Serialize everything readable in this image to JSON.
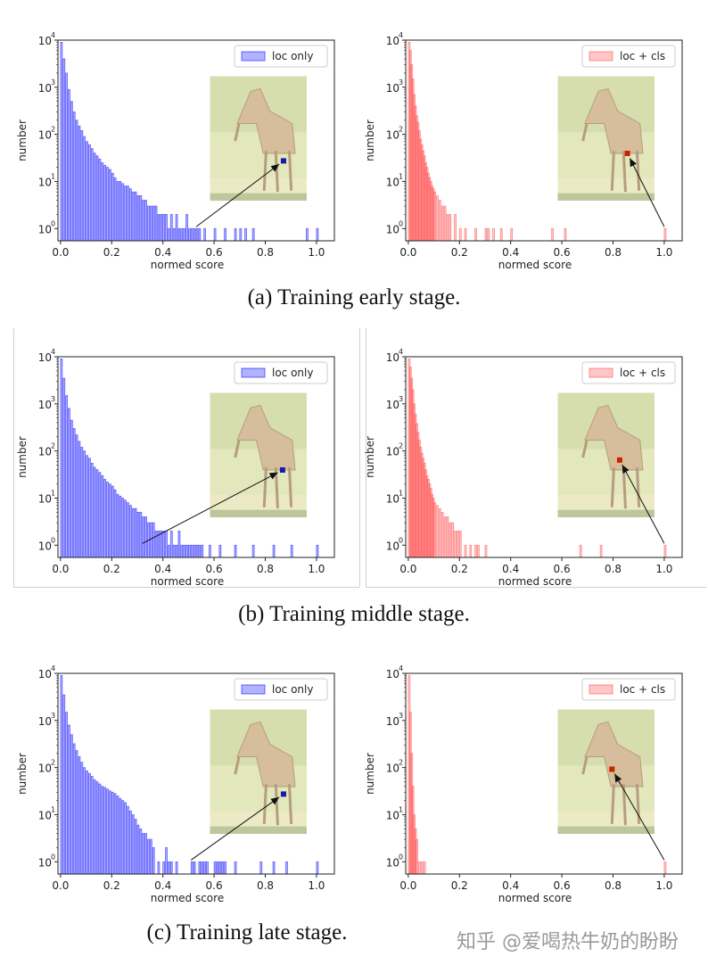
{
  "rows": [
    {
      "caption": "(a) Training early stage.",
      "charts": [
        {
          "series_name": "loc only",
          "color": "#0000ff",
          "xlabel": "normed score",
          "ylabel": "number",
          "marker_color": "#1a1aa8",
          "arrow_from": [
            0.53,
            1.0
          ],
          "marker_pos": [
            0.76,
            0.68
          ],
          "bins": [
            0.0,
            0.01,
            0.02,
            0.03,
            0.04,
            0.05,
            0.06,
            0.07,
            0.08,
            0.09,
            0.1,
            0.11,
            0.12,
            0.13,
            0.14,
            0.15,
            0.16,
            0.17,
            0.18,
            0.19,
            0.2,
            0.21,
            0.22,
            0.23,
            0.24,
            0.25,
            0.26,
            0.27,
            0.28,
            0.29,
            0.3,
            0.31,
            0.32,
            0.33,
            0.34,
            0.35,
            0.36,
            0.37,
            0.38,
            0.39,
            0.4,
            0.41,
            0.42,
            0.43,
            0.44,
            0.45,
            0.46,
            0.47,
            0.48,
            0.49,
            0.5,
            0.51,
            0.52,
            0.53,
            0.54,
            0.56,
            0.6,
            0.64,
            0.68,
            0.7,
            0.72,
            0.75,
            0.96,
            1.0
          ],
          "counts": [
            9000,
            4000,
            2000,
            900,
            500,
            300,
            200,
            150,
            120,
            90,
            70,
            60,
            50,
            40,
            35,
            30,
            25,
            22,
            20,
            18,
            15,
            12,
            10,
            10,
            9,
            8,
            8,
            7,
            6,
            6,
            5,
            5,
            4,
            4,
            3,
            3,
            3,
            3,
            2,
            2,
            2,
            2,
            1,
            2,
            1,
            2,
            1,
            1,
            1,
            2,
            1,
            1,
            1,
            1,
            1,
            1,
            1,
            1,
            1,
            1,
            1,
            1,
            1,
            1
          ]
        },
        {
          "series_name": "loc + cls",
          "color": "#ff4444",
          "xlabel": "normed score",
          "ylabel": "number",
          "marker_color": "#cc2200",
          "arrow_from": [
            1.0,
            1.0
          ],
          "marker_pos": [
            0.72,
            0.62
          ],
          "bins": [
            0.0,
            0.005,
            0.01,
            0.015,
            0.02,
            0.025,
            0.03,
            0.035,
            0.04,
            0.045,
            0.05,
            0.055,
            0.06,
            0.065,
            0.07,
            0.075,
            0.08,
            0.085,
            0.09,
            0.095,
            0.1,
            0.11,
            0.12,
            0.13,
            0.14,
            0.15,
            0.16,
            0.18,
            0.2,
            0.22,
            0.26,
            0.3,
            0.31,
            0.33,
            0.36,
            0.4,
            0.56,
            0.61,
            1.0
          ],
          "counts": [
            9000,
            6000,
            3000,
            1500,
            700,
            400,
            250,
            180,
            120,
            80,
            60,
            45,
            35,
            25,
            20,
            15,
            12,
            10,
            8,
            7,
            6,
            5,
            4,
            3,
            3,
            2,
            2,
            2,
            1,
            1,
            1,
            1,
            1,
            1,
            1,
            1,
            1,
            1,
            1
          ]
        }
      ]
    },
    {
      "caption": "(b) Training middle stage.",
      "charts": [
        {
          "series_name": "loc only",
          "color": "#0000ff",
          "xlabel": "normed score",
          "ylabel": "number",
          "marker_color": "#1a1aa8",
          "arrow_from": [
            0.32,
            1.0
          ],
          "marker_pos": [
            0.75,
            0.62
          ],
          "bins": [
            0.0,
            0.01,
            0.02,
            0.03,
            0.04,
            0.05,
            0.06,
            0.07,
            0.08,
            0.09,
            0.1,
            0.11,
            0.12,
            0.13,
            0.14,
            0.15,
            0.16,
            0.17,
            0.18,
            0.19,
            0.2,
            0.21,
            0.22,
            0.23,
            0.24,
            0.25,
            0.26,
            0.27,
            0.28,
            0.29,
            0.3,
            0.31,
            0.32,
            0.33,
            0.34,
            0.35,
            0.36,
            0.37,
            0.38,
            0.39,
            0.4,
            0.41,
            0.42,
            0.43,
            0.44,
            0.45,
            0.46,
            0.47,
            0.48,
            0.49,
            0.5,
            0.51,
            0.52,
            0.53,
            0.54,
            0.55,
            0.58,
            0.62,
            0.68,
            0.75,
            0.83,
            0.9,
            1.0
          ],
          "counts": [
            9000,
            3500,
            1500,
            800,
            450,
            300,
            220,
            160,
            120,
            100,
            80,
            70,
            55,
            45,
            40,
            35,
            30,
            25,
            22,
            20,
            18,
            15,
            12,
            11,
            10,
            9,
            8,
            7,
            6,
            6,
            5,
            5,
            4,
            4,
            3,
            3,
            3,
            2,
            2,
            2,
            2,
            2,
            1,
            2,
            1,
            1,
            2,
            1,
            1,
            1,
            1,
            1,
            1,
            1,
            1,
            1,
            1,
            1,
            1,
            1,
            1,
            1,
            1
          ]
        },
        {
          "series_name": "loc + cls",
          "color": "#ff4444",
          "xlabel": "normed score",
          "ylabel": "number",
          "marker_color": "#cc2200",
          "arrow_from": [
            1.0,
            1.0
          ],
          "marker_pos": [
            0.64,
            0.54
          ],
          "bins": [
            0.0,
            0.005,
            0.01,
            0.015,
            0.02,
            0.025,
            0.03,
            0.035,
            0.04,
            0.045,
            0.05,
            0.055,
            0.06,
            0.065,
            0.07,
            0.075,
            0.08,
            0.085,
            0.09,
            0.095,
            0.1,
            0.11,
            0.12,
            0.13,
            0.14,
            0.15,
            0.16,
            0.17,
            0.18,
            0.19,
            0.2,
            0.22,
            0.24,
            0.26,
            0.27,
            0.3,
            0.67,
            0.75,
            1.0
          ],
          "counts": [
            9000,
            6000,
            3500,
            2000,
            1000,
            600,
            380,
            250,
            170,
            120,
            90,
            70,
            55,
            40,
            30,
            25,
            20,
            16,
            12,
            10,
            8,
            7,
            6,
            5,
            4,
            4,
            3,
            3,
            2,
            2,
            2,
            1,
            1,
            1,
            1,
            1,
            1,
            1,
            1
          ]
        }
      ]
    },
    {
      "caption": "(c) Training late stage.",
      "charts": [
        {
          "series_name": "loc only",
          "color": "#0000ff",
          "xlabel": "normed score",
          "ylabel": "number",
          "marker_color": "#1a1aa8",
          "arrow_from": [
            0.51,
            1.0
          ],
          "marker_pos": [
            0.76,
            0.68
          ],
          "bins": [
            0.0,
            0.01,
            0.02,
            0.03,
            0.04,
            0.05,
            0.06,
            0.07,
            0.08,
            0.09,
            0.1,
            0.11,
            0.12,
            0.13,
            0.14,
            0.15,
            0.16,
            0.17,
            0.18,
            0.19,
            0.2,
            0.21,
            0.22,
            0.23,
            0.24,
            0.25,
            0.26,
            0.27,
            0.28,
            0.29,
            0.3,
            0.31,
            0.32,
            0.33,
            0.34,
            0.35,
            0.36,
            0.38,
            0.4,
            0.41,
            0.42,
            0.43,
            0.45,
            0.51,
            0.52,
            0.54,
            0.55,
            0.56,
            0.57,
            0.6,
            0.61,
            0.62,
            0.63,
            0.64,
            0.68,
            0.78,
            0.83,
            0.88,
            1.0
          ],
          "counts": [
            9000,
            3500,
            1500,
            800,
            500,
            320,
            230,
            170,
            130,
            100,
            85,
            75,
            65,
            55,
            50,
            45,
            40,
            38,
            35,
            32,
            30,
            28,
            25,
            22,
            20,
            18,
            15,
            12,
            10,
            8,
            6,
            5,
            4,
            4,
            3,
            3,
            2,
            1,
            1,
            2,
            1,
            1,
            1,
            1,
            1,
            1,
            1,
            1,
            1,
            1,
            1,
            1,
            1,
            1,
            1,
            1,
            1,
            1,
            1
          ]
        },
        {
          "series_name": "loc + cls",
          "color": "#ff4444",
          "xlabel": "normed score",
          "ylabel": "number",
          "marker_color": "#cc2200",
          "arrow_from": [
            1.0,
            1.0
          ],
          "marker_pos": [
            0.56,
            0.48
          ],
          "bins": [
            0.0,
            0.005,
            0.01,
            0.015,
            0.02,
            0.025,
            0.03,
            0.04,
            0.05,
            0.06,
            1.0
          ],
          "counts": [
            9000,
            1500,
            200,
            40,
            10,
            5,
            3,
            1,
            1,
            1,
            1
          ]
        }
      ]
    }
  ],
  "axes": {
    "xticks": [
      "0.0",
      "0.2",
      "0.4",
      "0.6",
      "0.8",
      "1.0"
    ],
    "ytick_mantissa": "10",
    "ytick_exponents": [
      "0",
      "1",
      "2",
      "3",
      "4"
    ]
  },
  "watermark": "知乎 @爱喝热牛奶的盼盼",
  "chart_data": [
    {
      "type": "bar",
      "title": "(a) Training early stage. — loc only",
      "xlabel": "normed score",
      "ylabel": "number",
      "yscale": "log",
      "xlim": [
        0.0,
        1.0
      ],
      "ylim": [
        1,
        10000
      ]
    },
    {
      "type": "bar",
      "title": "(a) Training early stage. — loc + cls",
      "xlabel": "normed score",
      "ylabel": "number",
      "yscale": "log",
      "xlim": [
        0.0,
        1.0
      ],
      "ylim": [
        1,
        10000
      ]
    },
    {
      "type": "bar",
      "title": "(b) Training middle stage. — loc only",
      "xlabel": "normed score",
      "ylabel": "number",
      "yscale": "log",
      "xlim": [
        0.0,
        1.0
      ],
      "ylim": [
        1,
        10000
      ]
    },
    {
      "type": "bar",
      "title": "(b) Training middle stage. — loc + cls",
      "xlabel": "normed score",
      "ylabel": "number",
      "yscale": "log",
      "xlim": [
        0.0,
        1.0
      ],
      "ylim": [
        1,
        10000
      ]
    },
    {
      "type": "bar",
      "title": "(c) Training late stage. — loc only",
      "xlabel": "normed score",
      "ylabel": "number",
      "yscale": "log",
      "xlim": [
        0.0,
        1.0
      ],
      "ylim": [
        1,
        10000
      ]
    },
    {
      "type": "bar",
      "title": "(c) Training late stage. — loc + cls",
      "xlabel": "normed score",
      "ylabel": "number",
      "yscale": "log",
      "xlim": [
        0.0,
        1.0
      ],
      "ylim": [
        1,
        10000
      ]
    }
  ]
}
